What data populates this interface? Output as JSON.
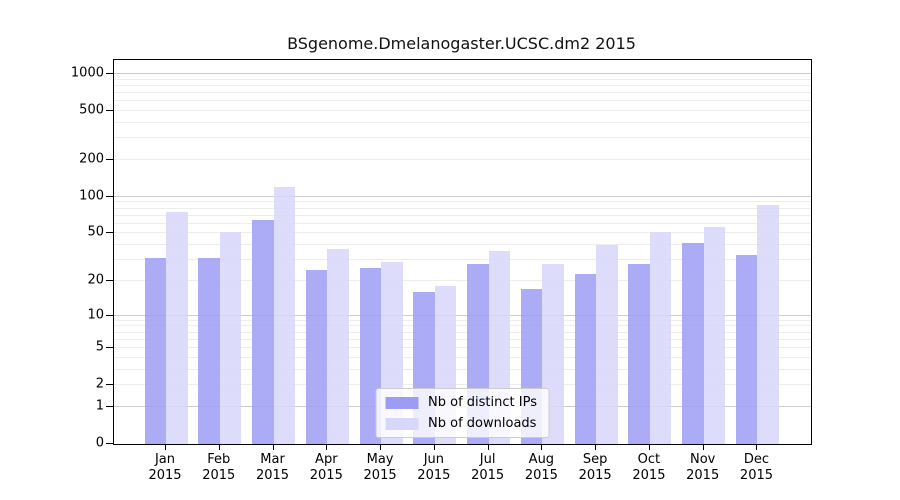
{
  "chart_data": {
    "type": "bar",
    "title": "BSgenome.Dmelanogaster.UCSC.dm2 2015",
    "categories": [
      "Jan",
      "Feb",
      "Mar",
      "Apr",
      "May",
      "Jun",
      "Jul",
      "Aug",
      "Sep",
      "Oct",
      "Nov",
      "Dec"
    ],
    "year_label": "2015",
    "series": [
      {
        "name": "Nb of distinct IPs",
        "color": "#9c9cf4",
        "values": [
          31,
          31,
          65,
          25,
          26,
          16,
          28,
          17,
          23,
          28,
          42,
          33
        ]
      },
      {
        "name": "Nb of downloads",
        "color": "#d7d7fa",
        "values": [
          75,
          51,
          120,
          37,
          29,
          18,
          36,
          28,
          40,
          51,
          57,
          85
        ]
      }
    ],
    "yticks": [
      0,
      1,
      2,
      5,
      10,
      20,
      50,
      100,
      200,
      500,
      1000
    ],
    "scale": "log1p",
    "ylim": [
      0,
      1300
    ],
    "grid": {
      "major_lines": [
        1,
        10,
        100,
        1000
      ],
      "minor_multipliers": [
        2,
        3,
        4,
        5,
        6,
        7,
        8,
        9
      ],
      "minor_decades": [
        1,
        10,
        100
      ]
    },
    "legend_position": "bottom-center-inside",
    "colors": {
      "axis": "#000000",
      "major_grid": "#cdcdcd",
      "minor_grid": "#ededed",
      "background": "#ffffff"
    }
  }
}
